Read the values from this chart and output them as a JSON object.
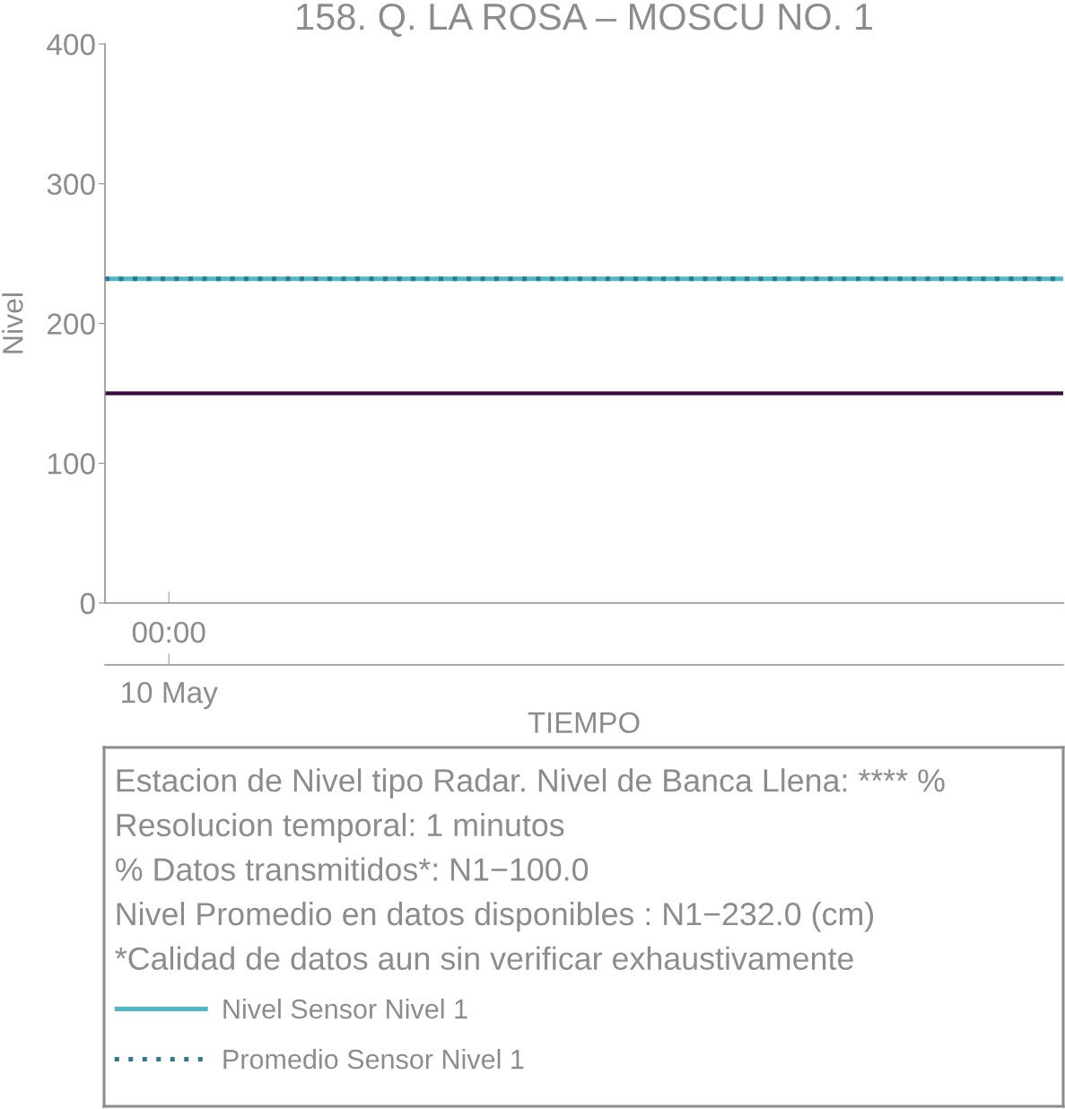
{
  "chart_data": {
    "type": "line",
    "title": "158. Q. LA ROSA – MOSCU NO. 1",
    "xlabel": "TIEMPO",
    "ylabel": "Nivel",
    "categories": [
      null,
      "00:00",
      null,
      null,
      null,
      null,
      null,
      null,
      null,
      null,
      null,
      null,
      null,
      null,
      null,
      null
    ],
    "series": [
      {
        "name": "Nivel Sensor Nivel 1",
        "color": "#4fb7c5",
        "values": [
          232,
          232,
          232,
          232,
          232,
          232,
          232,
          232,
          232,
          232,
          232,
          232,
          232,
          232,
          232,
          232
        ],
        "line_style": "solid"
      },
      {
        "name": "Promedio Sensor Nivel 1",
        "color": "#2f7890",
        "values": [
          232,
          232,
          232,
          232,
          232,
          232,
          232,
          232,
          232,
          232,
          232,
          232,
          232,
          232,
          232,
          232
        ],
        "line_style": "dotted"
      }
    ],
    "ref_lines": [
      {
        "axis": "y",
        "value": 150,
        "color": "#3d0a40"
      }
    ],
    "ylim": [
      0,
      400
    ],
    "yticks": [
      0,
      100,
      200,
      300,
      400
    ],
    "legend": "bottom",
    "annotations": [
      {
        "text": "10 May",
        "x": "00:00"
      },
      "Estacion de Nivel tipo Radar. Nivel de Banca Llena: **** %",
      "Resolucion temporal: 1 minutos",
      "% Datos transmitidos*: N1−100.0",
      "Nivel Promedio en datos disponibles : N1−232.0 (cm)",
      "*Calidad de datos aun sin verificar exhaustivamente"
    ]
  }
}
